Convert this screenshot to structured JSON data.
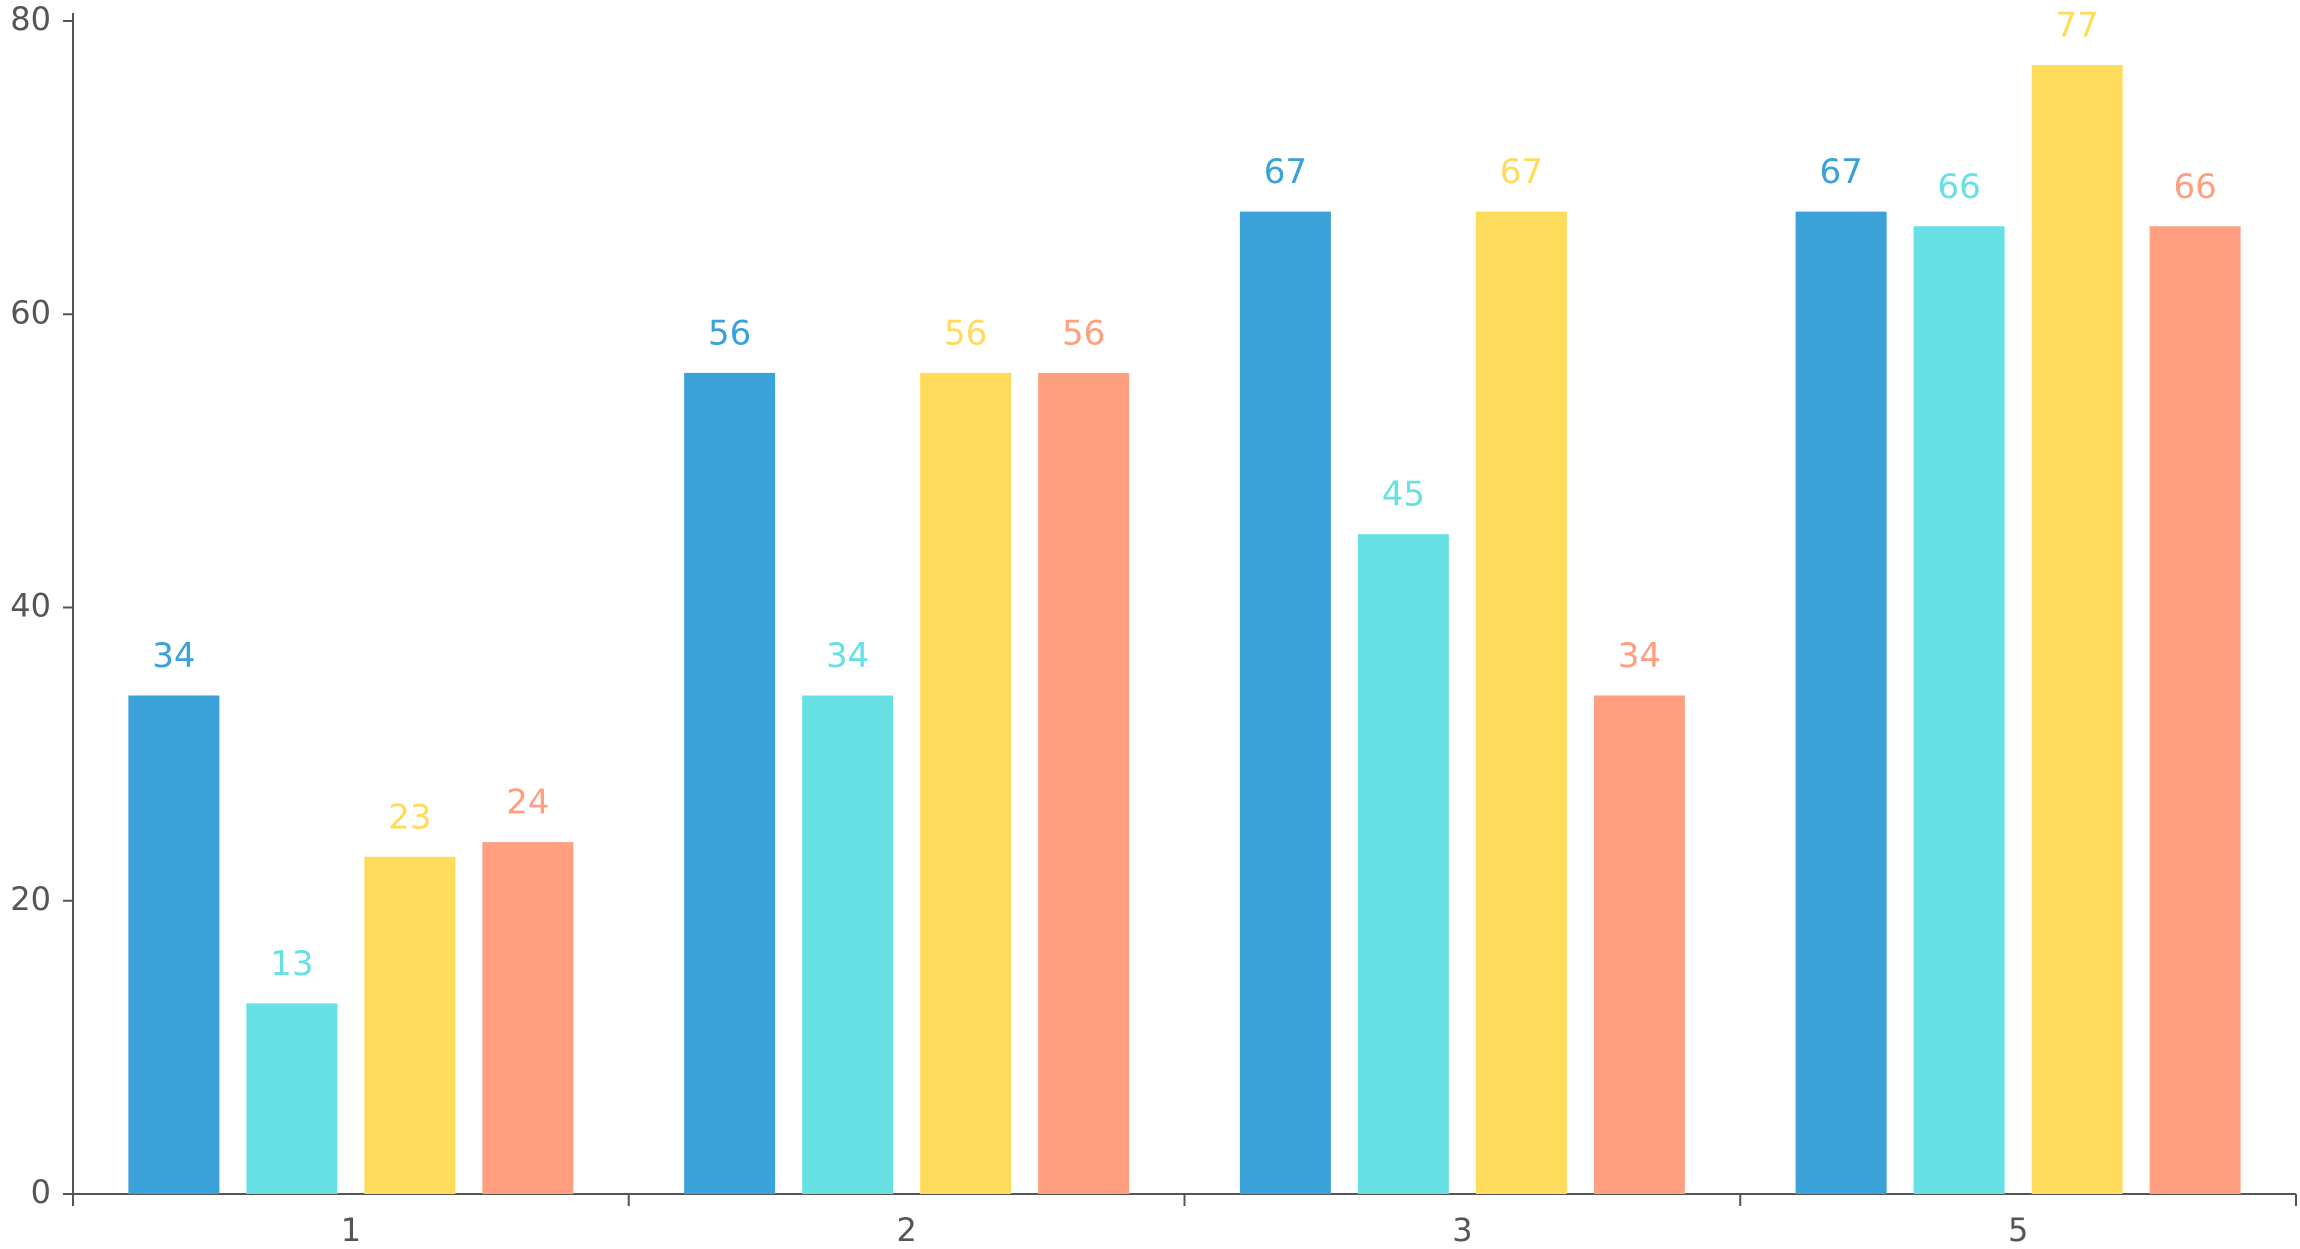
{
  "chart_data": {
    "type": "bar",
    "categories": [
      "1",
      "2",
      "3",
      "5"
    ],
    "series": [
      {
        "color": "#3aa1d9",
        "values": [
          34,
          56,
          67,
          67
        ]
      },
      {
        "color": "#67e0e3",
        "values": [
          13,
          34,
          45,
          66
        ]
      },
      {
        "color": "#ffdb5c",
        "values": [
          23,
          56,
          67,
          77
        ]
      },
      {
        "color": "#ff9f7f",
        "values": [
          24,
          56,
          34,
          66
        ]
      }
    ],
    "ylim": [
      0,
      80
    ],
    "yticks": [
      0,
      20,
      40,
      60,
      80
    ],
    "grid": false,
    "show_value_labels": true
  }
}
